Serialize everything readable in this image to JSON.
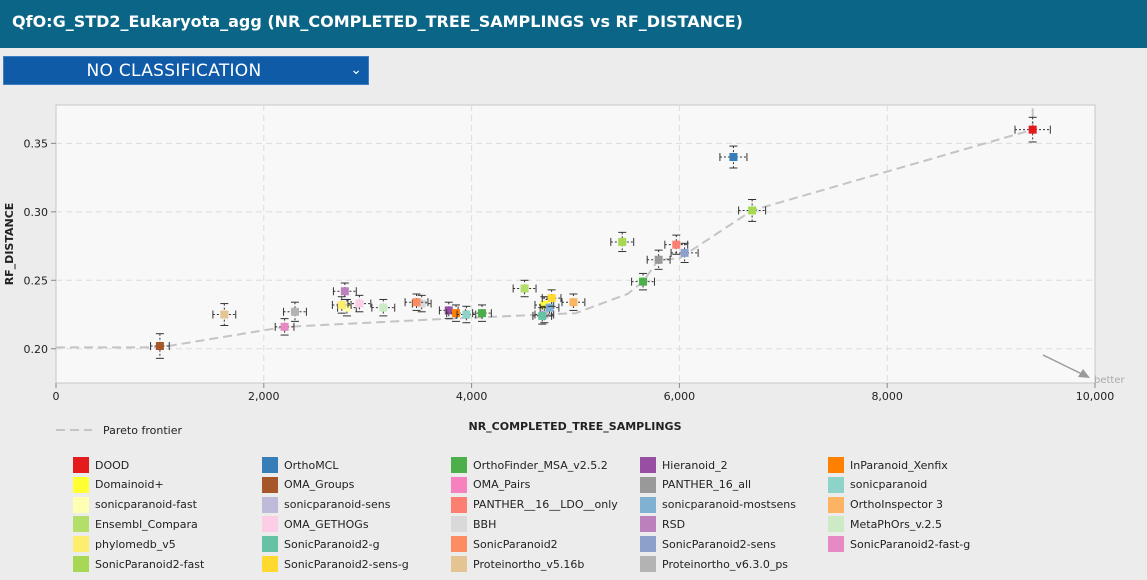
{
  "header": {
    "title": "QfO:G_STD2_Eukaryota_agg (NR_COMPLETED_TREE_SAMPLINGS vs RF_DISTANCE)"
  },
  "classification": {
    "selected": "NO CLASSIFICATION",
    "chevron_icon": "chevron-down-icon"
  },
  "chart_data": {
    "type": "scatter",
    "xlabel": "NR_COMPLETED_TREE_SAMPLINGS",
    "ylabel": "RF_DISTANCE",
    "xlim": [
      0,
      10000
    ],
    "ylim": [
      0.175,
      0.378
    ],
    "x_ticks": [
      0,
      2000,
      4000,
      6000,
      8000,
      10000
    ],
    "x_tick_labels": [
      "0",
      "2,000",
      "4,000",
      "6,000",
      "8,000",
      "10,000"
    ],
    "y_ticks": [
      0.2,
      0.25,
      0.3,
      0.35
    ],
    "y_tick_labels": [
      "0.20",
      "0.25",
      "0.30",
      "0.35"
    ],
    "grid": true,
    "better_label": "better",
    "pareto": {
      "name": "Pareto frontier",
      "points": [
        [
          0,
          0.201
        ],
        [
          1000,
          0.201
        ],
        [
          2200,
          0.216
        ],
        [
          3800,
          0.222
        ],
        [
          4700,
          0.225
        ],
        [
          5000,
          0.226
        ],
        [
          5500,
          0.24
        ],
        [
          5650,
          0.249
        ],
        [
          5800,
          0.265
        ],
        [
          6000,
          0.266
        ],
        [
          6700,
          0.301
        ],
        [
          9400,
          0.36
        ],
        [
          9400,
          0.378
        ]
      ]
    },
    "series": [
      {
        "name": "DOOD",
        "color": "#e41a1c",
        "x": 9400,
        "y": 0.36,
        "xerr": 170,
        "yerr": 0.009
      },
      {
        "name": "OrthoMCL",
        "color": "#377eb8",
        "x": 6520,
        "y": 0.34,
        "xerr": 130,
        "yerr": 0.008
      },
      {
        "name": "OrthoFinder_MSA_v2.5.2",
        "color": "#4daf4a",
        "x": 5650,
        "y": 0.249,
        "xerr": 110,
        "yerr": 0.006
      },
      {
        "name": "Hieranoid_2",
        "color": "#984ea3",
        "x": 3780,
        "y": 0.228,
        "xerr": 90,
        "yerr": 0.006
      },
      {
        "name": "InParanoid_Xenfix",
        "color": "#ff7f00",
        "x": 3850,
        "y": 0.226,
        "xerr": 90,
        "yerr": 0.006
      },
      {
        "name": "Domainoid+",
        "color": "#ffff33",
        "x": 4700,
        "y": 0.232,
        "xerr": 90,
        "yerr": 0.006
      },
      {
        "name": "OMA_Groups",
        "color": "#a65628",
        "x": 1000,
        "y": 0.202,
        "xerr": 90,
        "yerr": 0.009
      },
      {
        "name": "PANTHER_16_all",
        "color": "#999999",
        "x": 5800,
        "y": 0.265,
        "xerr": 110,
        "yerr": 0.007
      },
      {
        "name": "sonicparanoid",
        "color": "#8dd3c7",
        "x": 3950,
        "y": 0.225,
        "xerr": 90,
        "yerr": 0.006
      },
      {
        "name": "sonicparanoid-fast",
        "color": "#ffffb3",
        "x": 2800,
        "y": 0.23,
        "xerr": 90,
        "yerr": 0.006
      },
      {
        "name": "sonicparanoid-sens",
        "color": "#bebada",
        "x": 4700,
        "y": 0.225,
        "xerr": 90,
        "yerr": 0.006
      },
      {
        "name": "PANTHER__16__LDO__only",
        "color": "#fb8072",
        "x": 5970,
        "y": 0.276,
        "xerr": 110,
        "yerr": 0.007
      },
      {
        "name": "sonicparanoid-mostsens",
        "color": "#80b1d3",
        "x": 4750,
        "y": 0.23,
        "xerr": 90,
        "yerr": 0.006
      },
      {
        "name": "OrthoInspector 3",
        "color": "#fdb462",
        "x": 4980,
        "y": 0.234,
        "xerr": 110,
        "yerr": 0.006
      },
      {
        "name": "Ensembl_Compara",
        "color": "#b3de69",
        "x": 4510,
        "y": 0.244,
        "xerr": 110,
        "yerr": 0.006
      },
      {
        "name": "OMA_GETHOGs",
        "color": "#fccde5",
        "x": 2920,
        "y": 0.233,
        "xerr": 110,
        "yerr": 0.006
      },
      {
        "name": "BBH",
        "color": "#d9d9d9",
        "x": 3520,
        "y": 0.233,
        "xerr": 90,
        "yerr": 0.006
      },
      {
        "name": "RSD",
        "color": "#bc80bd",
        "x": 2780,
        "y": 0.242,
        "xerr": 110,
        "yerr": 0.006
      },
      {
        "name": "MetaPhOrs_v.2.5",
        "color": "#ccebc5",
        "x": 3150,
        "y": 0.23,
        "xerr": 110,
        "yerr": 0.006
      },
      {
        "name": "phylomedb_v5",
        "color": "#ffed6f",
        "x": 2750,
        "y": 0.232,
        "xerr": 90,
        "yerr": 0.006
      },
      {
        "name": "SonicParanoid2-g",
        "color": "#66c2a5",
        "x": 4680,
        "y": 0.224,
        "xerr": 90,
        "yerr": 0.006
      },
      {
        "name": "SonicParanoid2",
        "color": "#fc8d62",
        "x": 3470,
        "y": 0.234,
        "xerr": 110,
        "yerr": 0.006
      },
      {
        "name": "SonicParanoid2-sens",
        "color": "#8da0cb",
        "x": 6050,
        "y": 0.27,
        "xerr": 130,
        "yerr": 0.007
      },
      {
        "name": "SonicParanoid2-fast-g",
        "color": "#e78ac3",
        "x": 2200,
        "y": 0.216,
        "xerr": 90,
        "yerr": 0.006
      },
      {
        "name": "SonicParanoid2-fast",
        "color": "#a6d854",
        "x": 6700,
        "y": 0.301,
        "xerr": 130,
        "yerr": 0.008
      },
      {
        "name": "SonicParanoid2-sens-g",
        "color": "#ffd92f",
        "x": 4770,
        "y": 0.237,
        "xerr": 90,
        "yerr": 0.006
      },
      {
        "name": "Proteinortho_v5.16b",
        "color": "#e5c494",
        "x": 1620,
        "y": 0.225,
        "xerr": 110,
        "yerr": 0.008
      },
      {
        "name": "Proteinortho_v6.3.0_ps",
        "color": "#b3b3b3",
        "x": 2300,
        "y": 0.227,
        "xerr": 110,
        "yerr": 0.007
      },
      {
        "name": "OrthoFinder_MSA_v2.5.2 (2)",
        "color": "#4daf4a",
        "x": 4100,
        "y": 0.226,
        "xerr": 90,
        "yerr": 0.006
      },
      {
        "name": "SonicParanoid2-fast (2)",
        "color": "#a6d854",
        "x": 5450,
        "y": 0.278,
        "xerr": 110,
        "yerr": 0.007
      }
    ]
  },
  "legend": [
    "DOOD",
    "OrthoMCL",
    "OrthoFinder_MSA_v2.5.2",
    "Hieranoid_2",
    "InParanoid_Xenfix",
    "Domainoid+",
    "OMA_Groups",
    "OMA_Pairs",
    "PANTHER_16_all",
    "sonicparanoid",
    "sonicparanoid-fast",
    "sonicparanoid-sens",
    "PANTHER__16__LDO__only",
    "sonicparanoid-mostsens",
    "OrthoInspector 3",
    "Ensembl_Compara",
    "OMA_GETHOGs",
    "BBH",
    "RSD",
    "MetaPhOrs_v.2.5",
    "phylomedb_v5",
    "SonicParanoid2-g",
    "SonicParanoid2",
    "SonicParanoid2-sens",
    "SonicParanoid2-fast-g",
    "SonicParanoid2-fast",
    "SonicParanoid2-sens-g",
    "Proteinortho_v5.16b",
    "Proteinortho_v6.3.0_ps"
  ],
  "legend_colors": [
    "#e41a1c",
    "#377eb8",
    "#4daf4a",
    "#984ea3",
    "#ff7f00",
    "#ffff33",
    "#a65628",
    "#f781bf",
    "#999999",
    "#8dd3c7",
    "#ffffb3",
    "#bebada",
    "#fb8072",
    "#80b1d3",
    "#fdb462",
    "#b3de69",
    "#fccde5",
    "#d9d9d9",
    "#bc80bd",
    "#ccebc5",
    "#ffed6f",
    "#66c2a5",
    "#fc8d62",
    "#8da0cb",
    "#e78ac3",
    "#a6d854",
    "#ffd92f",
    "#e5c494",
    "#b3b3b3"
  ]
}
